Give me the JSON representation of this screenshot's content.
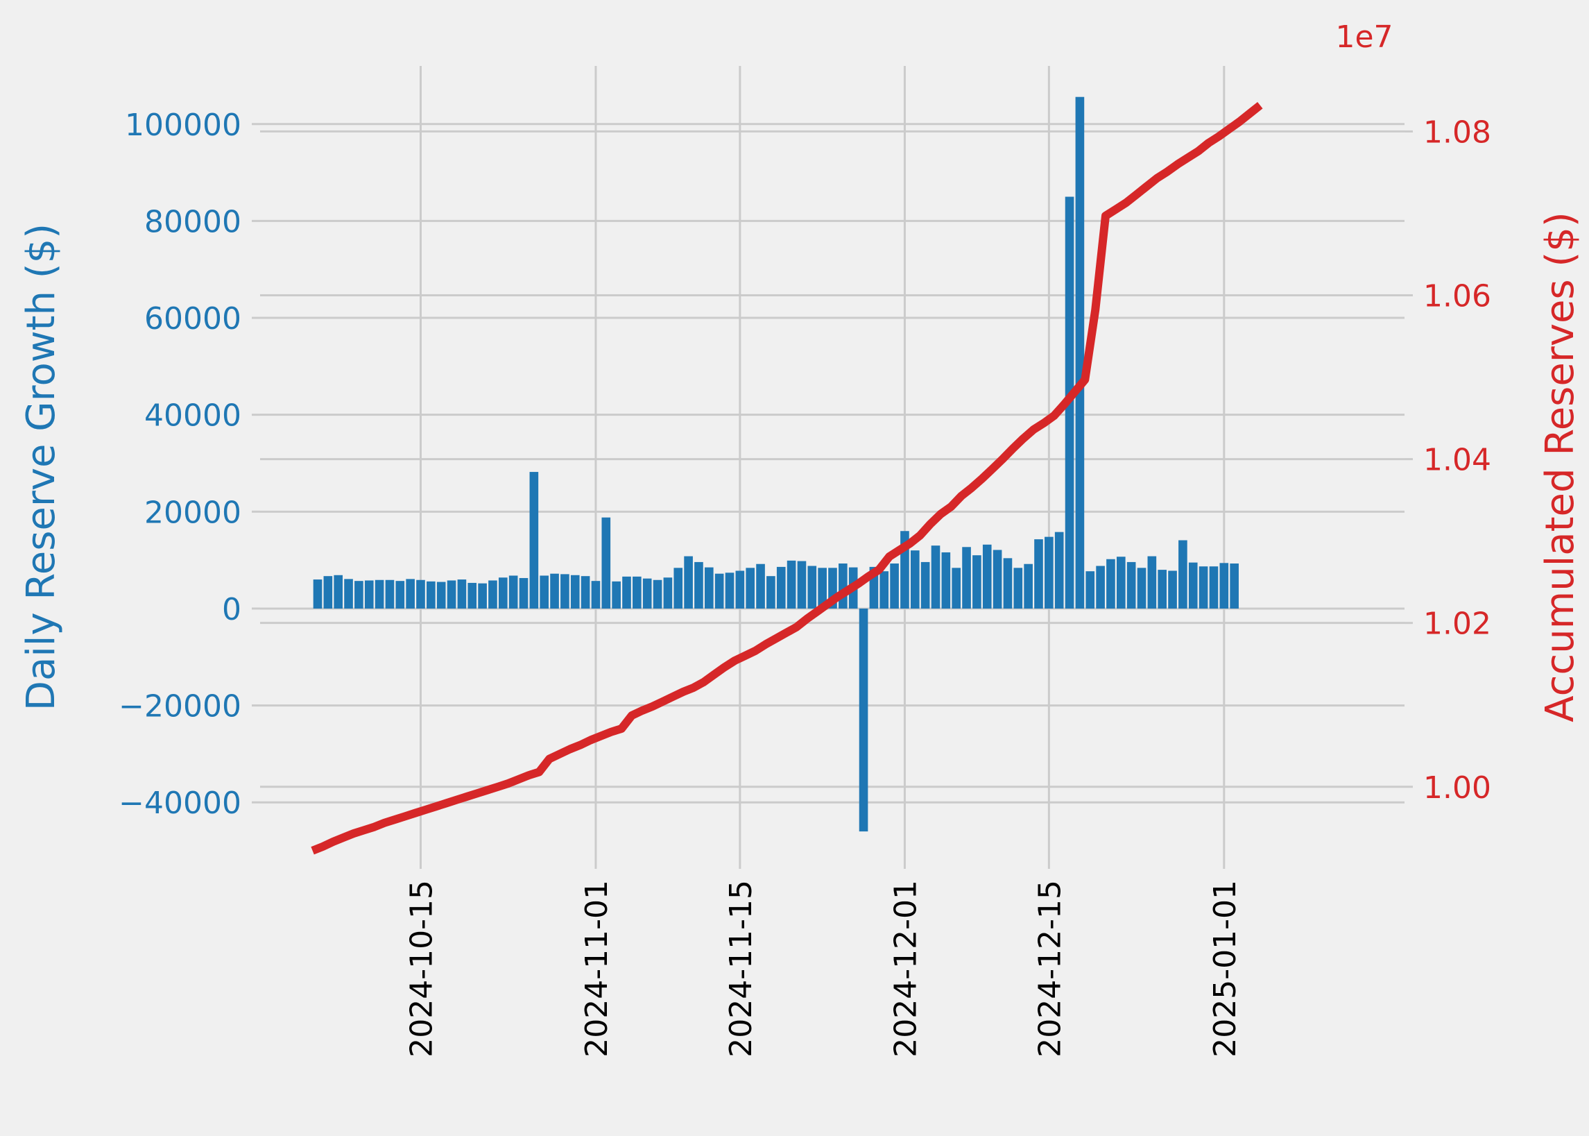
{
  "chart_data": {
    "type": "bar+line",
    "x_start_date": "2024-10-05",
    "x_tick_labels": [
      "2024-10-15",
      "2024-11-01",
      "2024-11-15",
      "2024-12-01",
      "2024-12-15",
      "2025-01-01"
    ],
    "y_left": {
      "label": "Daily Reserve Growth ($)",
      "ticks": [
        -40000,
        -20000,
        0,
        20000,
        40000,
        60000,
        80000,
        100000
      ],
      "tick_labels": [
        "−40000",
        "−20000",
        "0",
        "20000",
        "40000",
        "60000",
        "80000",
        "100000"
      ],
      "ylim": [
        -52000,
        112000
      ],
      "color": "#1f77b4"
    },
    "y_right": {
      "label": "Accumulated Reserves ($)",
      "ticks": [
        10000000,
        10200000,
        10400000,
        10600000,
        10800000
      ],
      "tick_labels": [
        "1.00",
        "1.02",
        "1.04",
        "1.06",
        "1.08"
      ],
      "offset_label": "1e7",
      "ylim": [
        9910000,
        10880000
      ],
      "color": "#d62728"
    },
    "series": [
      {
        "kind": "bar",
        "axis": "left",
        "color": "#1f77b4",
        "values": [
          6000,
          6700,
          6900,
          6100,
          5700,
          5800,
          5900,
          5900,
          5700,
          6100,
          5900,
          5600,
          5500,
          5800,
          6000,
          5300,
          5200,
          5800,
          6400,
          6800,
          6300,
          28200,
          6800,
          7200,
          7100,
          6900,
          6700,
          5700,
          18800,
          5600,
          6600,
          6600,
          6200,
          5900,
          6400,
          8400,
          10800,
          9600,
          8500,
          7200,
          7400,
          7800,
          8400,
          9200,
          6700,
          8600,
          9900,
          9800,
          8800,
          8400,
          8400,
          9300,
          8500,
          -46000,
          8600,
          7700,
          9300,
          16000,
          12000,
          9600,
          13000,
          11600,
          8400,
          12700,
          11000,
          13200,
          12100,
          10400,
          8400,
          9200,
          14300,
          14800,
          15800,
          85000,
          105600,
          7700,
          8800,
          10200,
          10700,
          9600,
          8400,
          10800,
          8000,
          7800,
          14100,
          9500,
          8700,
          8700,
          9400,
          9300
        ]
      },
      {
        "kind": "line",
        "axis": "right",
        "color": "#d62728",
        "values": [
          9922000,
          9927000,
          9933000,
          9938000,
          9943000,
          9947000,
          9951000,
          9956000,
          9960000,
          9964000,
          9968000,
          9972000,
          9976000,
          9980000,
          9984000,
          9988000,
          9992000,
          9996000,
          10000000,
          10004000,
          10009000,
          10014000,
          10018000,
          10034000,
          10040000,
          10046000,
          10051000,
          10057000,
          10062000,
          10067000,
          10071000,
          10087000,
          10093000,
          10098000,
          10104000,
          10110000,
          10116000,
          10121000,
          10128000,
          10137000,
          10146000,
          10154000,
          10160000,
          10166000,
          10174000,
          10181000,
          10188000,
          10195000,
          10205000,
          10214000,
          10223000,
          10232000,
          10240000,
          10248000,
          10257000,
          10265000,
          10281000,
          10289000,
          10297000,
          10307000,
          10321000,
          10333000,
          10342000,
          10355000,
          10365000,
          10376000,
          10388000,
          10400000,
          10413000,
          10425000,
          10436000,
          10444000,
          10453000,
          10467000,
          10482000,
          10497000,
          10582000,
          10697000,
          10705000,
          10713000,
          10723000,
          10733000,
          10743000,
          10751000,
          10760000,
          10768000,
          10776000,
          10786000,
          10794000,
          10803000,
          10812000,
          10822000,
          10832000
        ]
      }
    ],
    "grid": true
  }
}
